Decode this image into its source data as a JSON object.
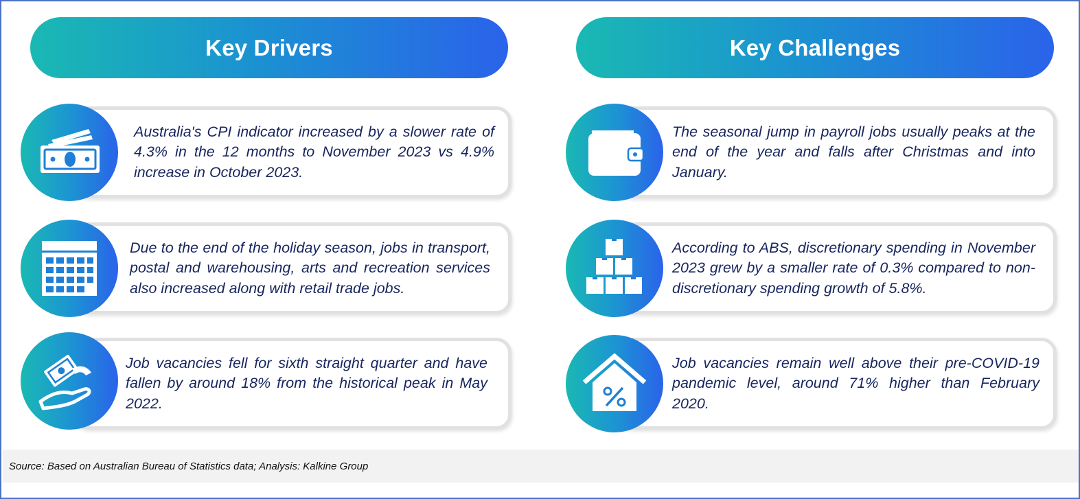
{
  "drivers": {
    "title": "Key Drivers",
    "items": [
      {
        "icon": "money-icon",
        "text": "Australia's CPI indicator increased by a slower rate of 4.3% in the 12 months to November 2023 vs 4.9% increase in October 2023."
      },
      {
        "icon": "calendar-icon",
        "text": "Due to the end of the holiday season, jobs in transport, postal and warehousing, arts and recreation services also increased along with retail trade jobs."
      },
      {
        "icon": "hand-money-icon",
        "text": "Job vacancies fell for sixth straight quarter and have fallen by around 18% from the historical peak in May 2022."
      }
    ]
  },
  "challenges": {
    "title": "Key Challenges",
    "items": [
      {
        "icon": "wallet-icon",
        "text": "The seasonal jump in payroll jobs usually peaks at the end of the year and falls after Christmas and into January."
      },
      {
        "icon": "boxes-icon",
        "text": "According to ABS, discretionary spending in November 2023 grew by a smaller rate of 0.3% compared to non-discretionary spending growth of 5.8%."
      },
      {
        "icon": "house-percent-icon",
        "text": "Job vacancies remain well above their pre-COVID-19 pandemic level, around 71% higher than February 2020."
      }
    ]
  },
  "source": "Source: Based on Australian Bureau of Statistics data; Analysis: Kalkine Group",
  "colors": {
    "gradient_start": "#1ab9b3",
    "gradient_end": "#2a63ea",
    "text": "#17255e",
    "card_border": "#e1e1e1",
    "frame_border": "#4a72c4"
  }
}
